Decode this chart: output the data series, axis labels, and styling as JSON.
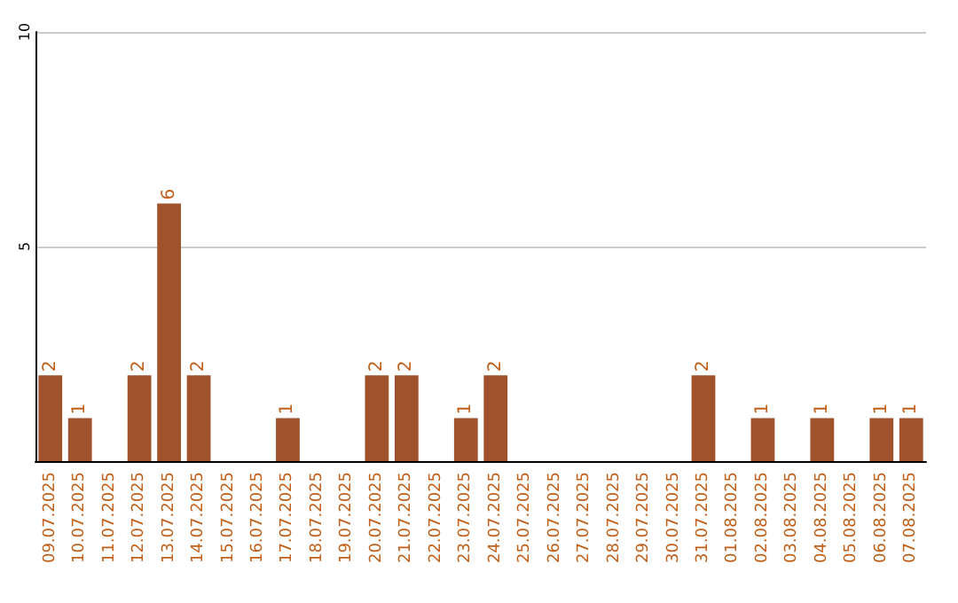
{
  "chart_data": {
    "type": "bar",
    "categories": [
      "09.07.2025",
      "10.07.2025",
      "11.07.2025",
      "12.07.2025",
      "13.07.2025",
      "14.07.2025",
      "15.07.2025",
      "16.07.2025",
      "17.07.2025",
      "18.07.2025",
      "19.07.2025",
      "20.07.2025",
      "21.07.2025",
      "22.07.2025",
      "23.07.2025",
      "24.07.2025",
      "25.07.2025",
      "26.07.2025",
      "27.07.2025",
      "28.07.2025",
      "29.07.2025",
      "30.07.2025",
      "31.07.2025",
      "01.08.2025",
      "02.08.2025",
      "03.08.2025",
      "04.08.2025",
      "05.08.2025",
      "06.08.2025",
      "07.08.2025"
    ],
    "values": [
      2,
      1,
      0,
      2,
      6,
      2,
      0,
      0,
      1,
      0,
      0,
      2,
      2,
      0,
      1,
      2,
      0,
      0,
      0,
      0,
      0,
      0,
      2,
      0,
      1,
      0,
      1,
      0,
      1,
      1
    ],
    "value_labels": [
      "2",
      "1",
      null,
      "2",
      "6",
      "2",
      null,
      null,
      "1",
      null,
      null,
      "2",
      "2",
      null,
      "1",
      "2",
      null,
      null,
      null,
      null,
      null,
      null,
      "2",
      null,
      "1",
      null,
      "1",
      null,
      "1",
      "1"
    ],
    "color": "#a0522d",
    "ylim": [
      0,
      10
    ],
    "yticks": [
      {
        "value": 0,
        "label": null
      },
      5,
      10
    ],
    "grid": "y"
  }
}
